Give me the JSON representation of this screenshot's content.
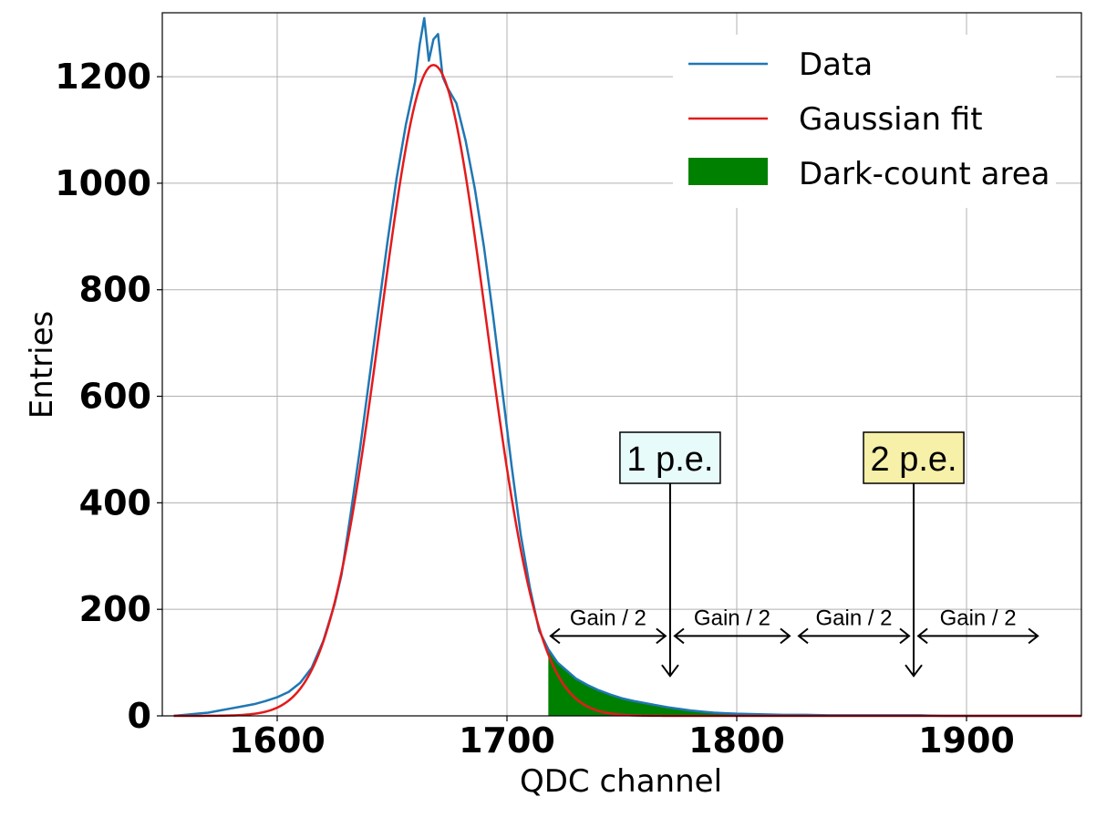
{
  "chart_data": {
    "type": "line",
    "xlabel": "QDC channel",
    "ylabel": "Entries",
    "xlim": [
      1550,
      1950
    ],
    "ylim": [
      0,
      1320
    ],
    "grid": true,
    "x_ticks": [
      1600,
      1700,
      1800,
      1900
    ],
    "y_ticks": [
      0,
      200,
      400,
      600,
      800,
      1000,
      1200
    ],
    "legend_position": "top-right",
    "legend": {
      "data": "Data",
      "fit": "Gaussian fit",
      "area": "Dark-count area"
    },
    "colors": {
      "data": "#1f77b4",
      "fit": "#e41a1c",
      "area": "#008000",
      "pe1_box": "#e8fbfb",
      "pe2_box": "#f7f0a8"
    },
    "series": [
      {
        "name": "Data",
        "x": [
          1555,
          1560,
          1565,
          1570,
          1575,
          1580,
          1585,
          1590,
          1595,
          1600,
          1605,
          1610,
          1615,
          1620,
          1625,
          1628,
          1632,
          1636,
          1640,
          1644,
          1648,
          1652,
          1656,
          1660,
          1662,
          1664,
          1666,
          1668,
          1670,
          1672,
          1674,
          1678,
          1682,
          1686,
          1690,
          1694,
          1698,
          1702,
          1706,
          1710,
          1714,
          1718,
          1722,
          1726,
          1730,
          1735,
          1740,
          1745,
          1750,
          1755,
          1760,
          1765,
          1770,
          1775,
          1780,
          1785,
          1790,
          1795,
          1800,
          1810,
          1820,
          1830,
          1840,
          1850,
          1860,
          1870,
          1880,
          1890,
          1900,
          1910,
          1920,
          1930,
          1940,
          1950
        ],
        "y": [
          0,
          2,
          4,
          6,
          10,
          14,
          18,
          22,
          28,
          35,
          45,
          62,
          90,
          140,
          210,
          265,
          380,
          500,
          630,
          760,
          890,
          1010,
          1110,
          1190,
          1260,
          1310,
          1230,
          1270,
          1280,
          1200,
          1180,
          1150,
          1080,
          990,
          880,
          750,
          610,
          470,
          340,
          240,
          160,
          125,
          100,
          85,
          70,
          58,
          48,
          40,
          33,
          28,
          24,
          20,
          16,
          13,
          10,
          8,
          6,
          5,
          4,
          3,
          2,
          2,
          1,
          1,
          1,
          1,
          1,
          0,
          0,
          0,
          0,
          0,
          0,
          0
        ]
      },
      {
        "name": "Gaussian fit",
        "mean": 1668,
        "sigma": 23,
        "amplitude": 1222
      }
    ],
    "dark_count_area": {
      "x_start": 1718
    },
    "annotations": {
      "pe1_label": "1 p.e.",
      "pe1_x": 1771,
      "pe2_label": "2 p.e.",
      "pe2_x": 1877,
      "gain_label": "Gain / 2",
      "gain_arrows": [
        {
          "x1": 1719,
          "x2": 1769,
          "label": "Gain / 2"
        },
        {
          "x1": 1773,
          "x2": 1823,
          "label": "Gain / 2"
        },
        {
          "x1": 1827,
          "x2": 1875,
          "label": "Gain / 2"
        },
        {
          "x1": 1879,
          "x2": 1931,
          "label": "Gain / 2"
        }
      ],
      "arrow_y": 150,
      "pe_arrow_top": 440,
      "pe_arrow_bottom": 75
    }
  }
}
